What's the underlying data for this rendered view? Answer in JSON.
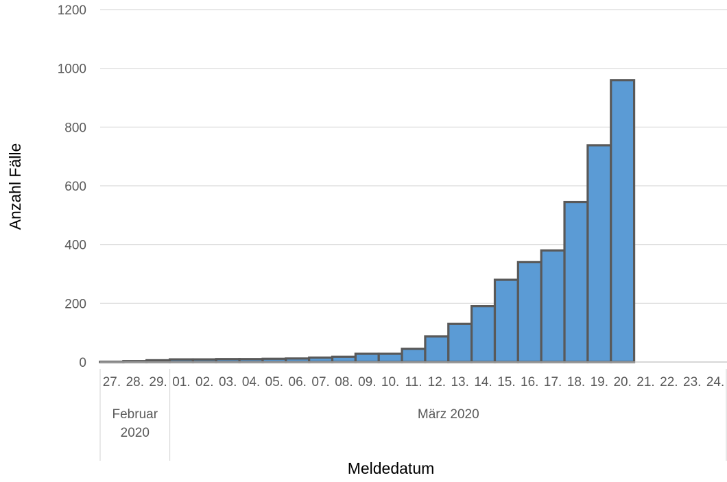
{
  "chart_data": {
    "type": "bar",
    "title": "",
    "xlabel": "Meldedatum",
    "ylabel": "Anzahl Fälle",
    "ylim": [
      0,
      1200
    ],
    "yticks": [
      0,
      200,
      400,
      600,
      800,
      1000,
      1200
    ],
    "grid": true,
    "bar_color": "#5B9BD5",
    "bar_edge_color": "#595959",
    "categories": [
      "27.",
      "28.",
      "29.",
      "01.",
      "02.",
      "03.",
      "04.",
      "05.",
      "06.",
      "07.",
      "08.",
      "09.",
      "10.",
      "11.",
      "12.",
      "13.",
      "14.",
      "15.",
      "16.",
      "17.",
      "18.",
      "19.",
      "20.",
      "21.",
      "22.",
      "23.",
      "24."
    ],
    "values": [
      1,
      3,
      6,
      9,
      9,
      10,
      10,
      11,
      12,
      15,
      18,
      28,
      28,
      45,
      87,
      130,
      190,
      280,
      340,
      380,
      545,
      738,
      960,
      null,
      null,
      null,
      null
    ],
    "groups": [
      {
        "label": "Februar 2020",
        "lines": [
          "Februar",
          "2020"
        ],
        "start": 0,
        "count": 3
      },
      {
        "label": "März 2020",
        "lines": [
          "März 2020"
        ],
        "start": 3,
        "count": 24
      }
    ]
  }
}
